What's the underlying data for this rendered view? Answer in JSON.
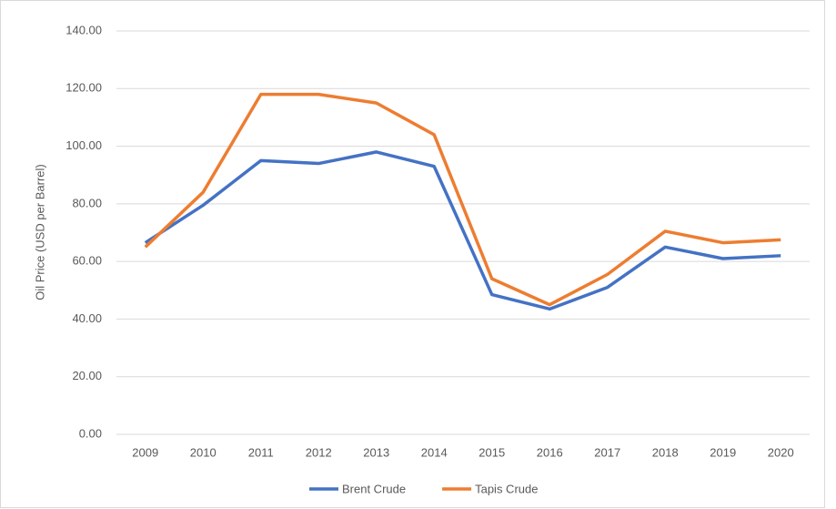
{
  "chart_data": {
    "type": "line",
    "y_label": "Oil Price (USD per Barrel)",
    "categories": [
      "2009",
      "2010",
      "2011",
      "2012",
      "2013",
      "2014",
      "2015",
      "2016",
      "2017",
      "2018",
      "2019",
      "2020"
    ],
    "series": [
      {
        "name": "Brent Crude",
        "color": "#4472c4",
        "values": [
          66.5,
          79.5,
          95,
          94,
          98,
          93,
          48.5,
          43.5,
          51,
          65,
          61,
          62
        ]
      },
      {
        "name": "Tapis Crude",
        "color": "#ed7d31",
        "values": [
          65,
          84,
          118,
          118,
          115,
          104,
          54,
          45,
          55.5,
          70.5,
          66.5,
          67.5
        ]
      }
    ],
    "ylim": [
      0,
      140
    ],
    "yticks": [
      {
        "value": 0,
        "label": "0.00"
      },
      {
        "value": 20,
        "label": "20.00"
      },
      {
        "value": 40,
        "label": "40.00"
      },
      {
        "value": 60,
        "label": "60.00"
      },
      {
        "value": 80,
        "label": "80.00"
      },
      {
        "value": 100,
        "label": "100.00"
      },
      {
        "value": 120,
        "label": "120.00"
      },
      {
        "value": 140,
        "label": "140.00"
      }
    ],
    "grid": true,
    "legend": "bottom"
  }
}
